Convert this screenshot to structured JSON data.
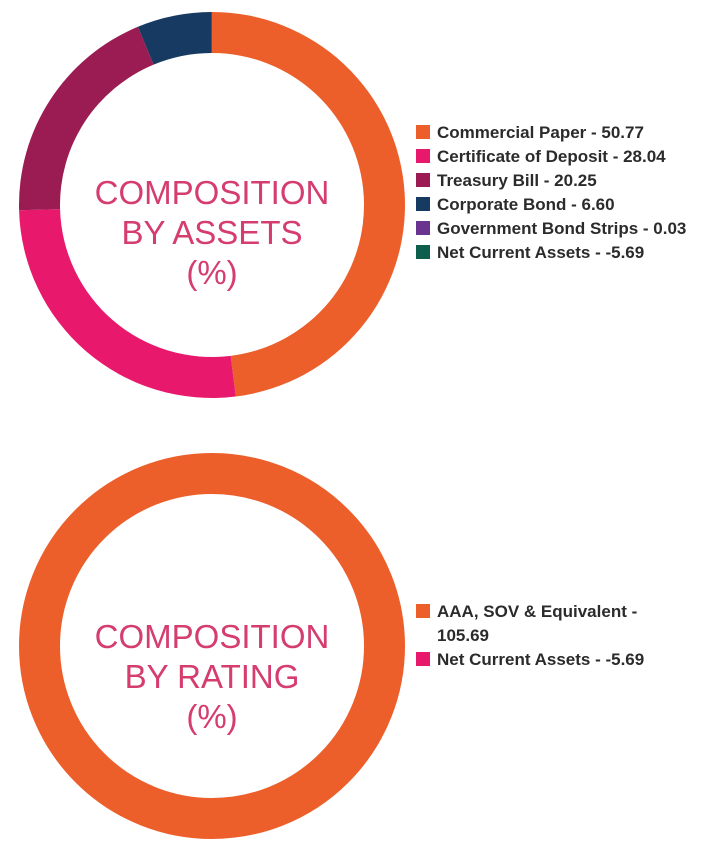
{
  "chart_data": [
    {
      "type": "donut",
      "center_title": [
        "COMPOSITION",
        "BY ASSETS",
        "(%)"
      ],
      "categories": [
        "Commercial Paper",
        "Certificate of Deposit",
        "Treasury Bill",
        "Corporate Bond",
        "Government Bond Strips",
        "Net Current Assets"
      ],
      "values": [
        50.77,
        28.04,
        20.25,
        6.6,
        0.03,
        -5.69
      ],
      "legend_labels": [
        "Commercial Paper - 50.77",
        "Certificate of Deposit - 28.04",
        "Treasury Bill - 20.25",
        "Corporate Bond - 6.60",
        "Government Bond Strips - 0.03",
        "Net Current Assets - -5.69"
      ],
      "colors": [
        "#ec5f2b",
        "#e8196c",
        "#9b1c52",
        "#173a62",
        "#6a3390",
        "#0e5e4e"
      ],
      "legend_position": "right"
    },
    {
      "type": "donut",
      "center_title": [
        "COMPOSITION",
        "BY RATING",
        "(%)"
      ],
      "categories": [
        "AAA, SOV & Equivalent",
        "Net Current Assets"
      ],
      "values": [
        105.69,
        -5.69
      ],
      "legend_labels": [
        "AAA, SOV & Equivalent - 105.69",
        "Net Current Assets - -5.69"
      ],
      "colors": [
        "#ec5f2b",
        "#e8196c"
      ],
      "legend_position": "right"
    }
  ]
}
